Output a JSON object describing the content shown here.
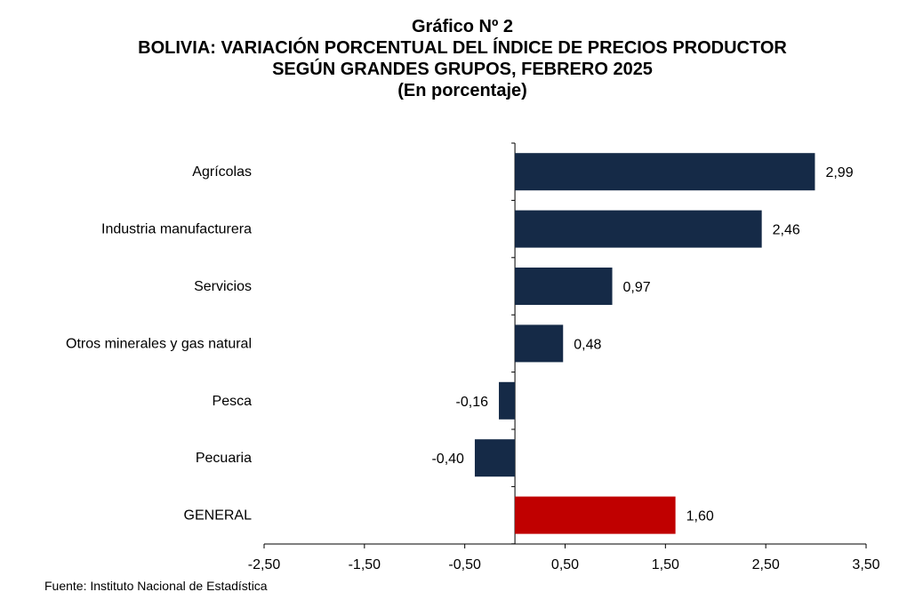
{
  "title": {
    "line1": "Gráfico Nº 2",
    "line2": "BOLIVIA: VARIACIÓN PORCENTUAL DEL ÍNDICE DE PRECIOS PRODUCTOR",
    "line3": "SEGÚN GRANDES GRUPOS, FEBRERO 2025",
    "line4": "(En porcentaje)"
  },
  "source": "Fuente: Instituto Nacional de Estadística",
  "colors": {
    "bar": "#152a47",
    "highlight": "#c00000",
    "axis": "#000000"
  },
  "chart_data": {
    "type": "bar",
    "orientation": "horizontal",
    "categories": [
      "Agrícolas",
      "Industria manufacturera",
      "Servicios",
      "Otros minerales y gas natural",
      "Pesca",
      "Pecuaria",
      "GENERAL"
    ],
    "values": [
      2.99,
      2.46,
      0.97,
      0.48,
      -0.16,
      -0.4,
      1.6
    ],
    "value_labels": [
      "2,99",
      "2,46",
      "0,97",
      "0,48",
      "-0,16",
      "-0,40",
      "1,60"
    ],
    "highlight_category": "GENERAL",
    "xlim": [
      -2.5,
      3.5
    ],
    "xticks": [
      -2.5,
      -1.5,
      -0.5,
      0.5,
      1.5,
      2.5,
      3.5
    ],
    "xtick_labels": [
      "-2,50",
      "-1,50",
      "-0,50",
      "0,50",
      "1,50",
      "2,50",
      "3,50"
    ],
    "grid": false,
    "legend": "none"
  }
}
